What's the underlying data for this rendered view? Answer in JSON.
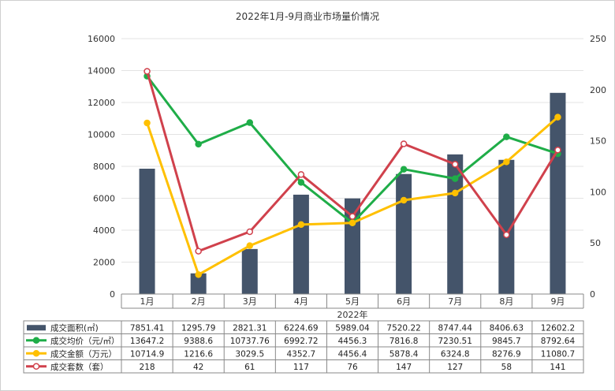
{
  "chart_data": {
    "type": "bar+line",
    "title": "2022年1月-9月商业市场量价情况",
    "xlabel": "2022年",
    "categories": [
      "1月",
      "2月",
      "3月",
      "4月",
      "5月",
      "6月",
      "7月",
      "8月",
      "9月"
    ],
    "y_left": {
      "min": 0,
      "max": 16000,
      "ticks": [
        "0",
        "2000",
        "4000",
        "6000",
        "8000",
        "10000",
        "12000",
        "14000",
        "16000"
      ]
    },
    "y_right": {
      "min": 0,
      "max": 250,
      "ticks": [
        "0",
        "50",
        "100",
        "150",
        "200",
        "250"
      ]
    },
    "series": [
      {
        "name": "成交面积(㎡)",
        "type": "bar",
        "axis": "left",
        "color": "#44546a",
        "values": [
          7851.41,
          1295.79,
          2821.31,
          6224.69,
          5989.04,
          7520.22,
          8747.44,
          8406.63,
          12602.2
        ],
        "labels": [
          "7851.41",
          "1295.79",
          "2821.31",
          "6224.69",
          "5989.04",
          "7520.22",
          "8747.44",
          "8406.63",
          "12602.2"
        ]
      },
      {
        "name": "成交均价（元/㎡）",
        "type": "line",
        "axis": "left",
        "color": "#1fad48",
        "values": [
          13647.2,
          9388.6,
          10737.76,
          6992.72,
          4456.3,
          7816.8,
          7230.51,
          9845.7,
          8792.64
        ],
        "labels": [
          "13647.2",
          "9388.6",
          "10737.76",
          "6992.72",
          "4456.3",
          "7816.8",
          "7230.51",
          "9845.7",
          "8792.64"
        ]
      },
      {
        "name": "成交金额（万元）",
        "type": "line",
        "axis": "left",
        "color": "#ffc000",
        "values": [
          10714.9,
          1216.6,
          3029.5,
          4352.7,
          4456.4,
          5878.4,
          6324.8,
          8276.9,
          11080.7
        ],
        "labels": [
          "10714.9",
          "1216.6",
          "3029.5",
          "4352.7",
          "4456.4",
          "5878.4",
          "6324.8",
          "8276.9",
          "11080.7"
        ]
      },
      {
        "name": "成交套数（套）",
        "type": "line",
        "axis": "right",
        "color": "#d0414c",
        "values": [
          218,
          42,
          61,
          117,
          76,
          147,
          127,
          58,
          141
        ],
        "labels": [
          "218",
          "42",
          "61",
          "117",
          "76",
          "147",
          "127",
          "58",
          "141"
        ]
      }
    ],
    "grid": true,
    "legend": "data-table"
  }
}
